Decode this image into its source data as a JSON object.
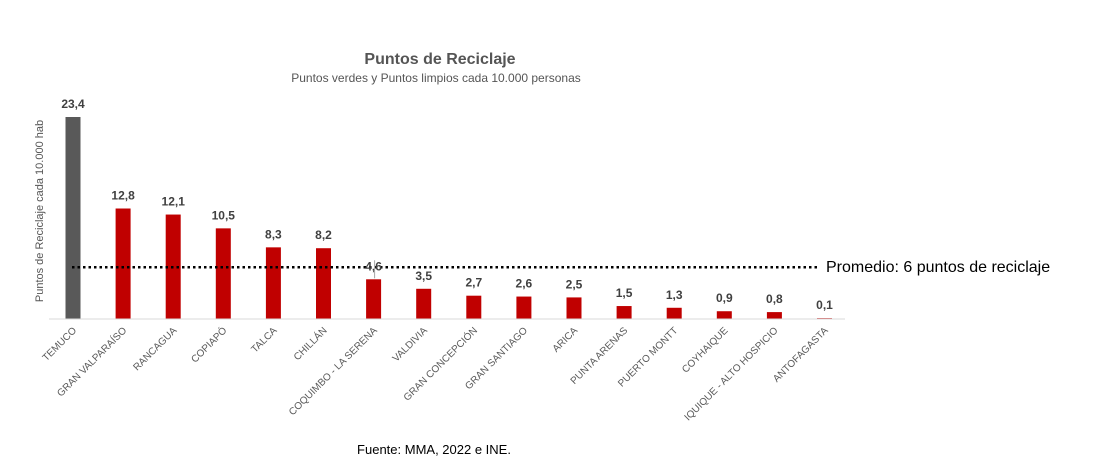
{
  "chart_data": {
    "type": "bar",
    "title": "Puntos de Reciclaje",
    "subtitle": "Puntos verdes y Puntos limpios cada 10.000 personas",
    "ylabel": "Puntos de Reciclaje cada 10.000 hab",
    "xlabel": "",
    "categories": [
      "TEMUCO",
      "GRAN VALPARAÍSO",
      "RANCAGUA",
      "COPIAPÓ",
      "TALCA",
      "CHILLÁN",
      "COQUIMBO - LA SERENA",
      "VALDIVIA",
      "GRAN CONCEPCIÓN",
      "GRAN SANTIAGO",
      "ARICA",
      "PUNTA ARENAS",
      "PUERTO MONTT",
      "COYHAIQUE",
      "IQUIQUE - ALTO HOSPICIO",
      "ANTOFAGASTA"
    ],
    "values": [
      23.4,
      12.8,
      12.1,
      10.5,
      8.3,
      8.2,
      4.6,
      3.5,
      2.7,
      2.6,
      2.5,
      1.5,
      1.3,
      0.9,
      0.8,
      0.1
    ],
    "value_labels": [
      "23,4",
      "12,8",
      "12,1",
      "10,5",
      "8,3",
      "8,2",
      "4,6",
      "3,5",
      "2,7",
      "2,6",
      "2,5",
      "1,5",
      "1,3",
      "0,9",
      "0,8",
      "0,1"
    ],
    "ylim": [
      0,
      23.4
    ],
    "reference_line": {
      "value": 6,
      "label": "Promedio: 6 puntos de reciclaje",
      "style": "dotted",
      "color": "#000000"
    },
    "highlight_color": "#595959",
    "bar_color": "#C00000",
    "highlight_index": 0,
    "grid": false,
    "legend": "none",
    "source": "Fuente: MMA, 2022 e INE."
  }
}
